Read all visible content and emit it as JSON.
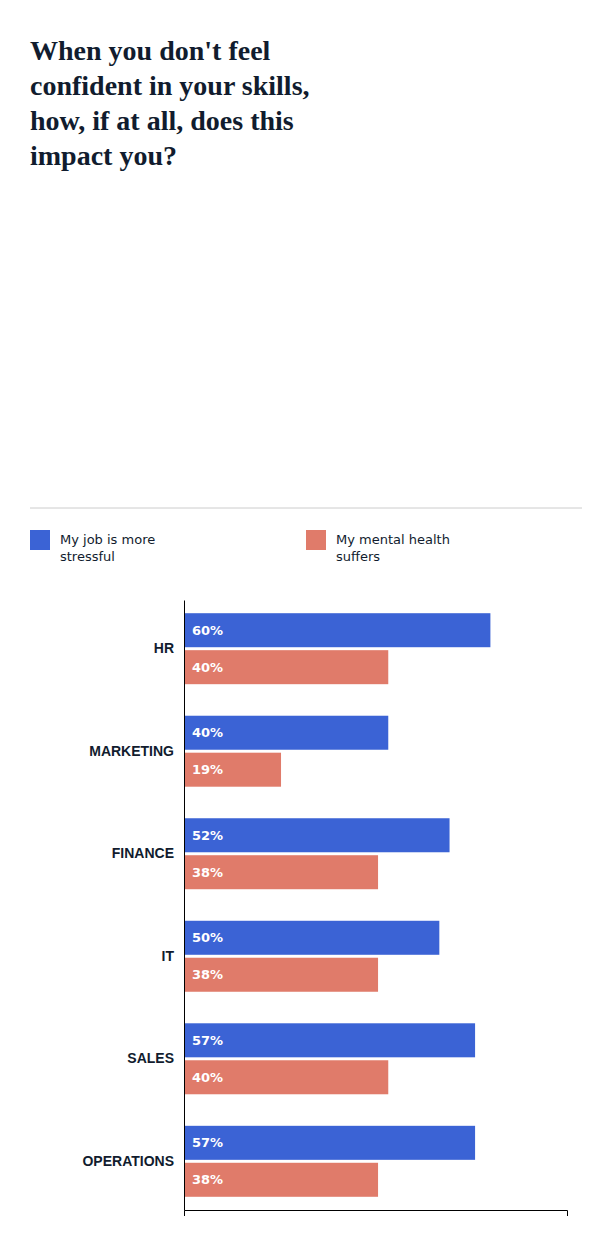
{
  "chart_data": {
    "type": "bar",
    "orientation": "horizontal",
    "title": "When you don't feel\nconfident in your skills,\nhow, if at all, does this\nimpact you?",
    "categories": [
      "HR",
      "MARKETING",
      "FINANCE",
      "IT",
      "SALES",
      "OPERATIONS"
    ],
    "series": [
      {
        "name": "My job is more\nstressful",
        "color": "#3b63d5",
        "values": [
          60,
          40,
          52,
          50,
          57,
          57
        ],
        "value_labels": [
          "60%",
          "40%",
          "52%",
          "50%",
          "57%",
          "57%"
        ]
      },
      {
        "name": "My mental health\nsuffers",
        "color": "#e07b6a",
        "values": [
          40,
          19,
          38,
          38,
          40,
          38
        ],
        "value_labels": [
          "40%",
          "19%",
          "38%",
          "38%",
          "40%",
          "38%"
        ]
      }
    ],
    "xlim": [
      0,
      75
    ],
    "data_labels": true,
    "tick_labels": "y",
    "grid": false,
    "legend": "top"
  }
}
